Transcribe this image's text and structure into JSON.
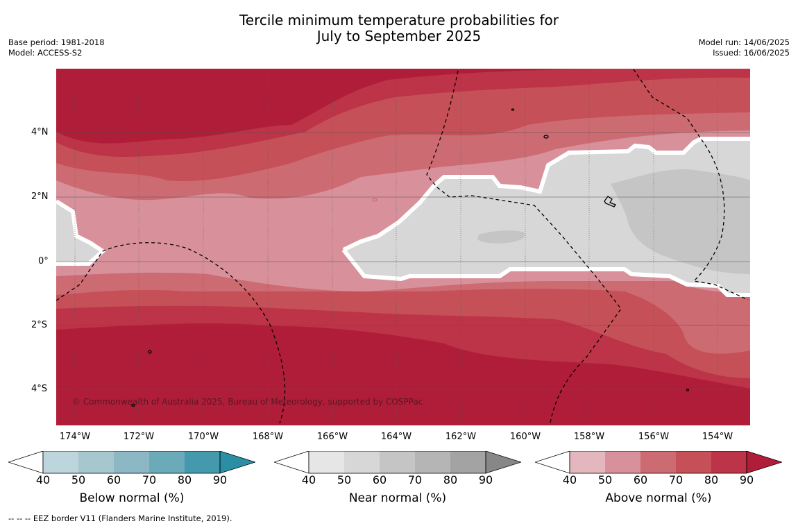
{
  "header": {
    "title_line1": "Tercile minimum temperature probabilities for",
    "title_line2": "July to September 2025",
    "base_period": "Base period: 1981-2018",
    "model": "Model: ACCESS-S2",
    "model_run": "Model run: 14/06/2025",
    "issued": "Issued: 16/06/2025"
  },
  "map": {
    "lat_labels": [
      "4°N",
      "2°N",
      "0°",
      "2°S",
      "4°S"
    ],
    "lon_labels": [
      "174°W",
      "172°W",
      "170°W",
      "168°W",
      "166°W",
      "164°W",
      "162°W",
      "160°W",
      "158°W",
      "156°W",
      "154°W"
    ],
    "copyright": "© Commonwealth of Australia 2025, Bureau of Meteorology, supported by COSPPac",
    "colors": {
      "above_90": "#b01d38",
      "above_80": "#bd3347",
      "above_70": "#c55058",
      "above_60": "#cd6b73",
      "above_50": "#d8919a",
      "near_50": "#d7d7d7",
      "near_60": "#c5c5c5",
      "boundary": "#ffffff",
      "eez_line": "#000000"
    }
  },
  "colorbars": [
    {
      "title": "Below normal (%)",
      "ticks": [
        "40",
        "50",
        "60",
        "70",
        "80",
        "90"
      ],
      "colors": [
        "#ffffff",
        "#bdd5dc",
        "#a7c7ce",
        "#8bb8c4",
        "#6babb9",
        "#449aac",
        "#2a8fa5"
      ]
    },
    {
      "title": "Near normal (%)",
      "ticks": [
        "40",
        "50",
        "60",
        "70",
        "80",
        "90"
      ],
      "colors": [
        "#ffffff",
        "#e6e6e6",
        "#d7d7d7",
        "#c5c5c5",
        "#b5b5b5",
        "#a3a3a3",
        "#878787"
      ]
    },
    {
      "title": "Above normal (%)",
      "ticks": [
        "40",
        "50",
        "60",
        "70",
        "80",
        "90"
      ],
      "colors": [
        "#ffffff",
        "#e3b7bd",
        "#d8919a",
        "#cd6b73",
        "#c55058",
        "#bd3347",
        "#b01d38"
      ]
    }
  ],
  "footer": {
    "eez_note": "--  --  -- EEZ border V11 (Flanders Marine Institute, 2019)."
  }
}
